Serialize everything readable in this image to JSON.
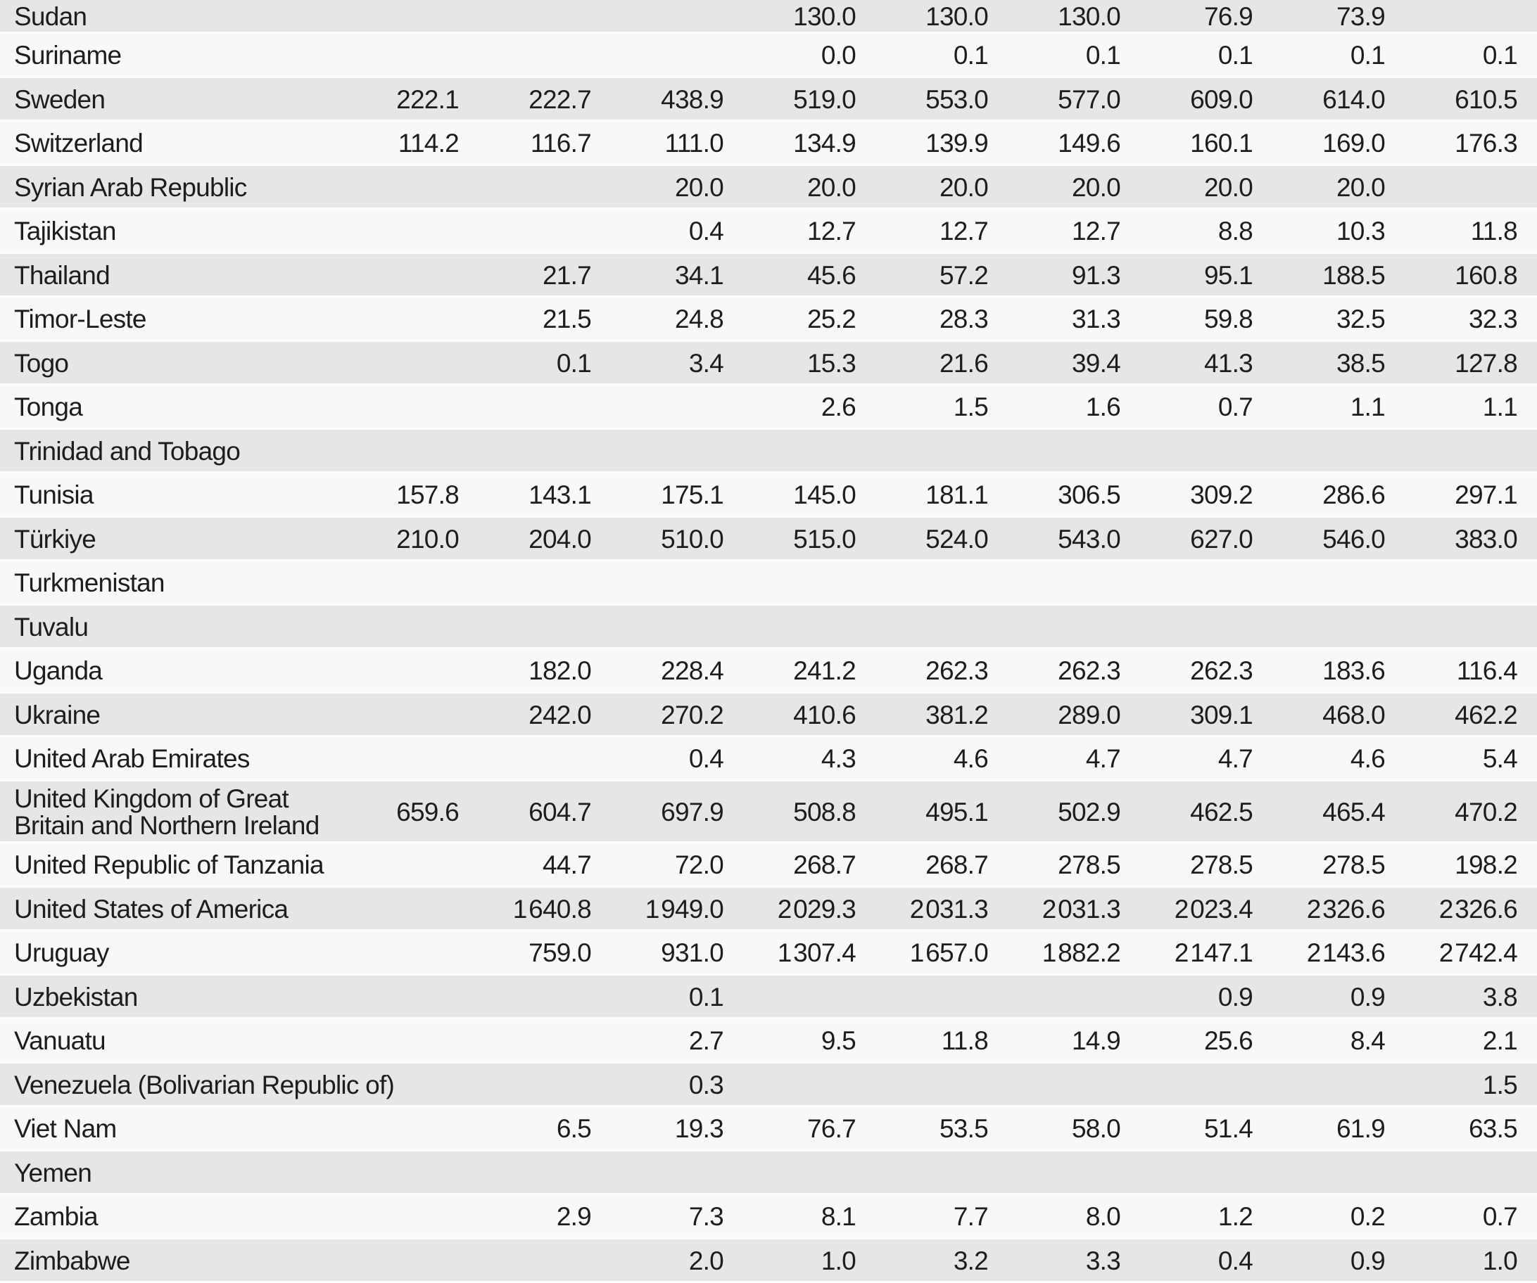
{
  "table": {
    "description": "Country data table, alphabetical segment Sudan through Zimbabwe, nine numeric value columns",
    "colors": {
      "stripe_dark": "#e6e6e6",
      "stripe_light": "#f8f8f8",
      "separator": "#fcfcfc",
      "text": "#1d1d1d"
    },
    "rows": [
      {
        "country": "Sudan",
        "values": [
          "",
          "",
          "",
          "130.0",
          "130.0",
          "130.0",
          "76.9",
          "73.9",
          ""
        ]
      },
      {
        "country": "Suriname",
        "values": [
          "",
          "",
          "",
          "0.0",
          "0.1",
          "0.1",
          "0.1",
          "0.1",
          "0.1"
        ]
      },
      {
        "country": "Sweden",
        "values": [
          "222.1",
          "222.7",
          "438.9",
          "519.0",
          "553.0",
          "577.0",
          "609.0",
          "614.0",
          "610.5"
        ]
      },
      {
        "country": "Switzerland",
        "values": [
          "114.2",
          "116.7",
          "111.0",
          "134.9",
          "139.9",
          "149.6",
          "160.1",
          "169.0",
          "176.3"
        ]
      },
      {
        "country": "Syrian Arab Republic",
        "values": [
          "",
          "",
          "20.0",
          "20.0",
          "20.0",
          "20.0",
          "20.0",
          "20.0",
          ""
        ]
      },
      {
        "country": "Tajikistan",
        "values": [
          "",
          "",
          "0.4",
          "12.7",
          "12.7",
          "12.7",
          "8.8",
          "10.3",
          "11.8"
        ]
      },
      {
        "country": "Thailand",
        "values": [
          "",
          "21.7",
          "34.1",
          "45.6",
          "57.2",
          "91.3",
          "95.1",
          "188.5",
          "160.8"
        ]
      },
      {
        "country": "Timor-Leste",
        "values": [
          "",
          "21.5",
          "24.8",
          "25.2",
          "28.3",
          "31.3",
          "59.8",
          "32.5",
          "32.3"
        ]
      },
      {
        "country": "Togo",
        "values": [
          "",
          "0.1",
          "3.4",
          "15.3",
          "21.6",
          "39.4",
          "41.3",
          "38.5",
          "127.8"
        ]
      },
      {
        "country": "Tonga",
        "values": [
          "",
          "",
          "",
          "2.6",
          "1.5",
          "1.6",
          "0.7",
          "1.1",
          "1.1"
        ]
      },
      {
        "country": "Trinidad and Tobago",
        "values": [
          "",
          "",
          "",
          "",
          "",
          "",
          "",
          "",
          ""
        ]
      },
      {
        "country": "Tunisia",
        "values": [
          "157.8",
          "143.1",
          "175.1",
          "145.0",
          "181.1",
          "306.5",
          "309.2",
          "286.6",
          "297.1"
        ]
      },
      {
        "country": "Türkiye",
        "values": [
          "210.0",
          "204.0",
          "510.0",
          "515.0",
          "524.0",
          "543.0",
          "627.0",
          "546.0",
          "383.0"
        ]
      },
      {
        "country": "Turkmenistan",
        "values": [
          "",
          "",
          "",
          "",
          "",
          "",
          "",
          "",
          ""
        ]
      },
      {
        "country": "Tuvalu",
        "values": [
          "",
          "",
          "",
          "",
          "",
          "",
          "",
          "",
          ""
        ]
      },
      {
        "country": "Uganda",
        "values": [
          "",
          "182.0",
          "228.4",
          "241.2",
          "262.3",
          "262.3",
          "262.3",
          "183.6",
          "116.4"
        ]
      },
      {
        "country": "Ukraine",
        "values": [
          "",
          "242.0",
          "270.2",
          "410.6",
          "381.2",
          "289.0",
          "309.1",
          "468.0",
          "462.2"
        ]
      },
      {
        "country": "United Arab Emirates",
        "values": [
          "",
          "",
          "0.4",
          "4.3",
          "4.6",
          "4.7",
          "4.7",
          "4.6",
          "5.4"
        ]
      },
      {
        "country": "United Kingdom of Great\nBritain and Northern Ireland",
        "values": [
          "659.6",
          "604.7",
          "697.9",
          "508.8",
          "495.1",
          "502.9",
          "462.5",
          "465.4",
          "470.2"
        ]
      },
      {
        "country": "United Republic of Tanzania",
        "values": [
          "",
          "44.7",
          "72.0",
          "268.7",
          "268.7",
          "278.5",
          "278.5",
          "278.5",
          "198.2"
        ]
      },
      {
        "country": "United States of America",
        "values": [
          "",
          "1 640.8",
          "1 949.0",
          "2 029.3",
          "2 031.3",
          "2 031.3",
          "2 023.4",
          "2 326.6",
          "2 326.6"
        ]
      },
      {
        "country": "Uruguay",
        "values": [
          "",
          "759.0",
          "931.0",
          "1 307.4",
          "1 657.0",
          "1 882.2",
          "2 147.1",
          "2 143.6",
          "2 742.4"
        ]
      },
      {
        "country": "Uzbekistan",
        "values": [
          "",
          "",
          "0.1",
          "",
          "",
          "",
          "0.9",
          "0.9",
          "3.8"
        ]
      },
      {
        "country": "Vanuatu",
        "values": [
          "",
          "",
          "2.7",
          "9.5",
          "11.8",
          "14.9",
          "25.6",
          "8.4",
          "2.1"
        ]
      },
      {
        "country": "Venezuela (Bolivarian Republic of)",
        "values": [
          "",
          "",
          "0.3",
          "",
          "",
          "",
          "",
          "",
          "1.5"
        ]
      },
      {
        "country": "Viet Nam",
        "values": [
          "",
          "6.5",
          "19.3",
          "76.7",
          "53.5",
          "58.0",
          "51.4",
          "61.9",
          "63.5"
        ]
      },
      {
        "country": "Yemen",
        "values": [
          "",
          "",
          "",
          "",
          "",
          "",
          "",
          "",
          ""
        ]
      },
      {
        "country": "Zambia",
        "values": [
          "",
          "2.9",
          "7.3",
          "8.1",
          "7.7",
          "8.0",
          "1.2",
          "0.2",
          "0.7"
        ]
      },
      {
        "country": "Zimbabwe",
        "values": [
          "",
          "",
          "2.0",
          "1.0",
          "3.2",
          "3.3",
          "0.4",
          "0.9",
          "1.0"
        ]
      }
    ]
  }
}
